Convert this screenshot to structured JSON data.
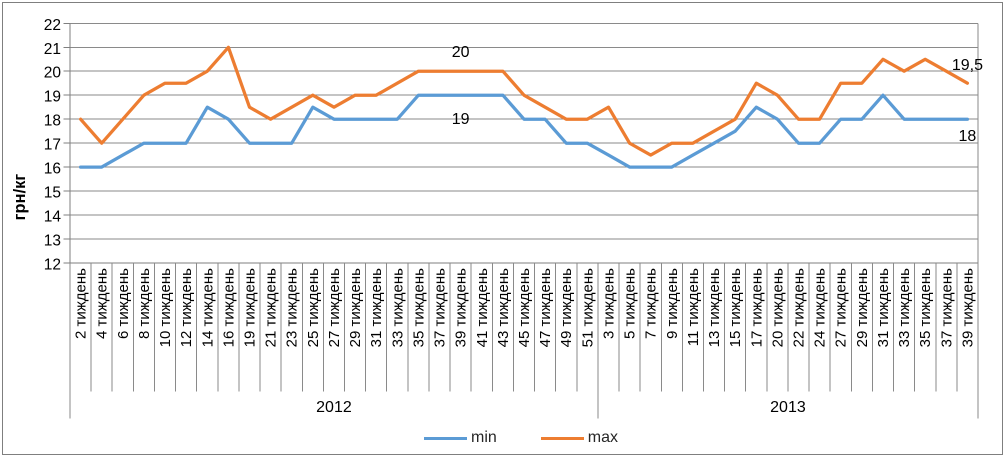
{
  "chart_data": {
    "type": "line",
    "title": "",
    "ylabel": "грн/кг",
    "ylim": [
      12,
      22
    ],
    "yticks": [
      12,
      13,
      14,
      15,
      16,
      17,
      18,
      19,
      20,
      21,
      22
    ],
    "grid": true,
    "legend_position": "bottom",
    "categories": [
      "2 тиждень",
      "4 тиждень",
      "6 тиждень",
      "8 тиждень",
      "10 тиждень",
      "12 тиждень",
      "14 тиждень",
      "16 тиждень",
      "19 тиждень",
      "21 тиждень",
      "23 тиждень",
      "25 тиждень",
      "27 тиждень",
      "29 тиждень",
      "31 тиждень",
      "33 тиждень",
      "35 тиждень",
      "37 тиждень",
      "39 тиждень",
      "41 тиждень",
      "43 тиждень",
      "45 тиждень",
      "47 тиждень",
      "49 тиждень",
      "51 тиждень",
      "3 тиждень",
      "5 тиждень",
      "7 тиждень",
      "9 тиждень",
      "11 тиждень",
      "13 тиждень",
      "15 тиждень",
      "17 тиждень",
      "20 тиждень",
      "22 тиждень",
      "24 тиждень",
      "27 тиждень",
      "29 тиждень",
      "31 тиждень",
      "33 тиждень",
      "35 тиждень",
      "37 тиждень",
      "39 тиждень"
    ],
    "category_groups": [
      {
        "label": "2012",
        "count": 25
      },
      {
        "label": "2013",
        "count": 18
      }
    ],
    "series": [
      {
        "name": "min",
        "color": "#5B9BD5",
        "values": [
          16,
          16,
          16.5,
          17,
          17,
          17,
          18.5,
          18,
          17,
          17,
          17,
          18.5,
          18,
          18,
          18,
          18,
          19,
          19,
          19,
          19,
          19,
          18,
          18,
          17,
          17,
          16.5,
          16,
          16,
          16,
          16.5,
          17,
          17.5,
          18.5,
          18,
          17,
          17,
          18,
          18,
          19,
          18,
          18,
          18,
          18
        ]
      },
      {
        "name": "max",
        "color": "#ED7D31",
        "values": [
          18,
          17,
          18,
          19,
          19.5,
          19.5,
          20,
          21,
          18.5,
          18,
          18.5,
          19,
          18.5,
          19,
          19,
          19.5,
          20,
          20,
          20,
          20,
          20,
          19,
          18.5,
          18,
          18,
          18.5,
          17,
          16.5,
          17,
          17,
          17.5,
          18,
          19.5,
          19,
          18,
          18,
          19.5,
          19.5,
          20.5,
          20,
          20.5,
          20,
          19.5
        ]
      }
    ],
    "annotations": [
      {
        "text": "20",
        "index": 18,
        "value": 20.8
      },
      {
        "text": "19",
        "index": 18,
        "value": 18.0
      },
      {
        "text": "19,5",
        "index": 42,
        "value": 20.25
      },
      {
        "text": "18",
        "index": 42,
        "value": 17.3
      }
    ]
  },
  "legend": {
    "items": [
      {
        "label": "min",
        "color": "#5B9BD5"
      },
      {
        "label": "max",
        "color": "#ED7D31"
      }
    ]
  },
  "colors": {
    "gridline": "#8a8a8a",
    "axis": "#7f7f7f",
    "text": "#000000",
    "min_series": "#5B9BD5",
    "max_series": "#ED7D31"
  }
}
